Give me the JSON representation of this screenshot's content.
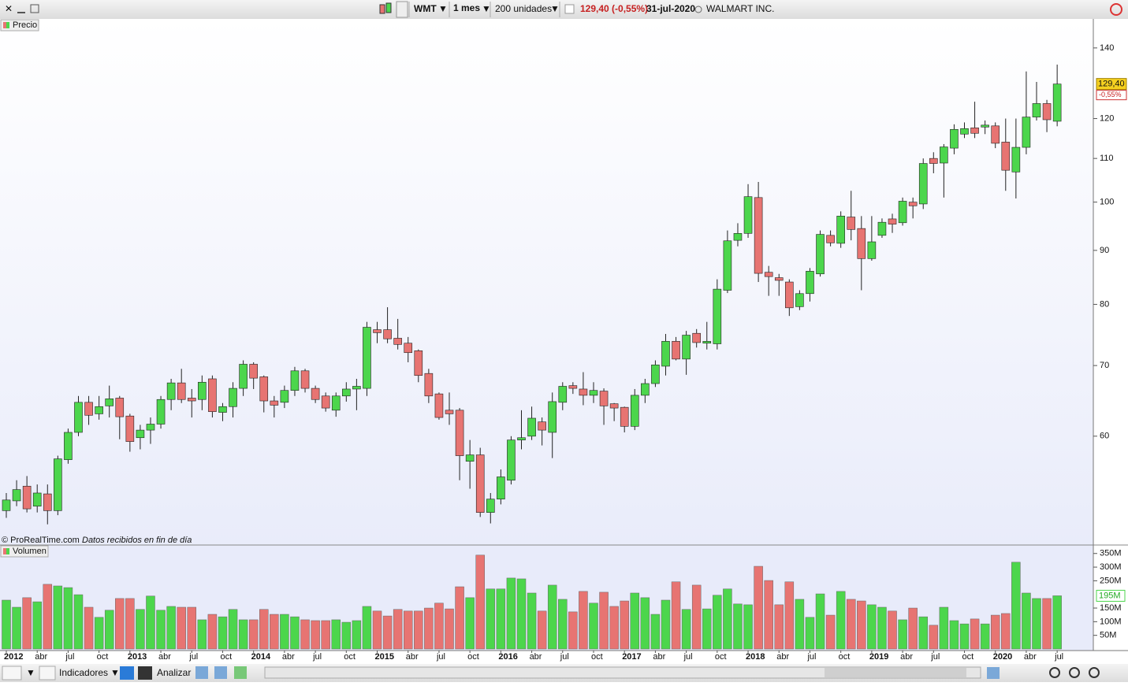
{
  "toolbar": {
    "symbol": "WMT",
    "period": "1 mes",
    "units": "200 unidades",
    "quote": "129,40 (-0,55%)",
    "date": "31-jul-2020",
    "name": "WALMART INC."
  },
  "bottom_toolbar": {
    "indicators": "Indicadores",
    "analyze": "Analizar"
  },
  "chart_data": [
    {
      "type": "candlestick",
      "title": "Precio",
      "log_scale": true,
      "categories": [
        "2012",
        null,
        null,
        "abr",
        null,
        null,
        "jul",
        null,
        null,
        "oct",
        null,
        null,
        "2013",
        null,
        null,
        "abr",
        null,
        null,
        "jul",
        null,
        null,
        "oct",
        null,
        null,
        "2014",
        null,
        null,
        "abr",
        null,
        null,
        "jul",
        null,
        null,
        "oct",
        null,
        null,
        "2015",
        null,
        null,
        "abr",
        null,
        null,
        "jul",
        null,
        null,
        "oct",
        null,
        null,
        "2016",
        null,
        null,
        "abr",
        null,
        null,
        "jul",
        null,
        null,
        "oct",
        null,
        null,
        "2017",
        null,
        null,
        "abr",
        null,
        null,
        "jul",
        null,
        null,
        "oct",
        null,
        null,
        "2018",
        null,
        null,
        "abr",
        null,
        null,
        "jul",
        null,
        null,
        "oct",
        null,
        null,
        "2019",
        null,
        null,
        "abr",
        null,
        null,
        "jul",
        null,
        null,
        "oct",
        null,
        null,
        "2020",
        null,
        null,
        "abr",
        null,
        null,
        "jul"
      ],
      "open": [
        51.0,
        52.1,
        53.8,
        51.5,
        52.9,
        51.0,
        57.0,
        60.5,
        64.6,
        63.0,
        64.1,
        65.2,
        62.7,
        59.8,
        60.8,
        61.6,
        65.0,
        67.4,
        65.2,
        65.0,
        68.0,
        63.2,
        64.0,
        66.6,
        70.2,
        68.3,
        64.8,
        64.6,
        66.3,
        69.2,
        66.6,
        65.5,
        63.5,
        65.5,
        66.5,
        66.6,
        75.7,
        75.7,
        74.3,
        73.5,
        72.3,
        68.8,
        65.8,
        63.5,
        63.5,
        56.8,
        57.6,
        50.8,
        52.3,
        54.5,
        59.5,
        60.0,
        61.9,
        60.5,
        64.6,
        67.0,
        66.5,
        65.6,
        66.2,
        64.4,
        63.9,
        61.3,
        65.6,
        67.3,
        69.9,
        73.8,
        71.0,
        75.1,
        73.5,
        73.4,
        82.5,
        92.0,
        93.4,
        101,
        85.8,
        84.8,
        84.0,
        79.6,
        81.9,
        85.5,
        93.0,
        91.4,
        96.8,
        94.4,
        88.4,
        93.0,
        96.4,
        95.6,
        100,
        99.6,
        110,
        108.9,
        112.5,
        116,
        117.6,
        117.8,
        118.1,
        114,
        106.8,
        112.7,
        120.4,
        124,
        119.3
      ],
      "high": [
        53,
        54.5,
        55,
        54,
        54,
        57.5,
        61,
        65.5,
        65.5,
        65.5,
        67,
        65.5,
        63,
        61.5,
        62.5,
        65.5,
        68,
        69.5,
        66.5,
        68.5,
        68.5,
        64.5,
        67.5,
        70.8,
        70.5,
        68.5,
        65.5,
        67,
        69.8,
        69.5,
        67,
        66,
        66,
        67.5,
        68,
        77,
        77,
        79.5,
        77.5,
        74.5,
        72.5,
        69.5,
        66,
        66,
        63.8,
        59.5,
        58.5,
        53,
        55.8,
        60,
        63.5,
        64,
        62.5,
        66,
        67.5,
        67.5,
        69,
        67.5,
        66.6,
        64.5,
        64,
        66.5,
        68,
        70.8,
        75,
        74.5,
        75.5,
        75.8,
        77,
        84.5,
        94,
        95.5,
        104,
        104.5,
        87,
        85.5,
        84.5,
        82.5,
        86.6,
        94,
        94,
        98,
        102.5,
        97,
        97,
        96.5,
        97.5,
        101,
        101,
        110,
        111.5,
        113.5,
        118.5,
        119,
        124.5,
        119.5,
        119,
        120,
        120,
        133,
        130,
        125,
        135
      ],
      "low": [
        50.2,
        51.5,
        50.8,
        50.8,
        49.5,
        50.5,
        56.5,
        60,
        61.5,
        62.2,
        62.5,
        59.6,
        58,
        58.3,
        59,
        61,
        63.5,
        64.5,
        62.5,
        63.5,
        62.5,
        62,
        62.5,
        65.5,
        66.5,
        63.2,
        62.5,
        63.8,
        65.5,
        66,
        64.5,
        63.3,
        62.6,
        64.7,
        63.5,
        65.5,
        73.5,
        73.5,
        72.5,
        70.5,
        67.5,
        64.5,
        62.2,
        61.5,
        54.5,
        53.5,
        50.3,
        49.6,
        51.7,
        54,
        58.3,
        59.5,
        58.8,
        57.2,
        63.5,
        65.8,
        64.2,
        64.5,
        61.5,
        62,
        60.5,
        60.8,
        64.5,
        66.8,
        68.5,
        70.8,
        68.6,
        72.8,
        72.5,
        72.5,
        82,
        90.8,
        92.5,
        84,
        81.5,
        81.5,
        78,
        79,
        80.5,
        85,
        90.8,
        90.5,
        92,
        82.5,
        88,
        92.5,
        93.5,
        95,
        96.5,
        98.5,
        106.5,
        101,
        111,
        115,
        115,
        116,
        112.5,
        102.5,
        100.8,
        111,
        119.5,
        116.5,
        118
      ],
      "close": [
        52.2,
        53.4,
        51.2,
        53.0,
        51.0,
        57.1,
        60.5,
        64.6,
        62.8,
        64.0,
        65.1,
        62.6,
        59.3,
        60.8,
        61.6,
        65.0,
        67.4,
        65.0,
        64.8,
        67.5,
        63.3,
        64.0,
        66.6,
        70.2,
        68.1,
        64.8,
        64.2,
        66.3,
        69.2,
        66.6,
        65.0,
        63.8,
        65.5,
        66.5,
        66.9,
        76.1,
        75.2,
        74.2,
        73.3,
        72.0,
        68.5,
        65.5,
        62.5,
        63.0,
        57.5,
        57.6,
        50.8,
        52.3,
        54.9,
        59.5,
        59.8,
        62.4,
        60.8,
        64.7,
        66.9,
        66.6,
        65.6,
        66.3,
        64.1,
        63.8,
        61.3,
        65.6,
        67.3,
        70.1,
        73.8,
        71.0,
        74.8,
        73.6,
        73.8,
        82.7,
        91.9,
        93.4,
        101.2,
        85.6,
        85.0,
        84.3,
        79.4,
        81.9,
        86.0,
        93.2,
        91.5,
        97.0,
        94.2,
        88.4,
        91.7,
        95.7,
        95.3,
        100.2,
        99.2,
        108.8,
        108.8,
        112.8,
        117.2,
        117.4,
        116.2,
        118.3,
        113.7,
        107.2,
        112.7,
        120.4,
        124,
        119.7,
        129.4
      ],
      "up_color": "#4cd64c",
      "down_color": "#e77472",
      "ylim": [
        48.3,
        148.9
      ],
      "yticks": [
        60,
        70,
        80,
        90,
        100,
        110,
        120,
        140
      ],
      "last_label": "129,40",
      "change_label": "-0,55%",
      "source": "© ProRealTime.com",
      "note": "Datos recibidos en fin de día"
    },
    {
      "type": "bar",
      "title": "Volumen",
      "values": [
        179000000,
        153000000,
        188000000,
        173000000,
        237000000,
        231000000,
        225000000,
        199000000,
        153000000,
        116000000,
        142000000,
        185000000,
        185000000,
        145000000,
        194000000,
        142000000,
        156000000,
        153000000,
        153000000,
        107000000,
        127000000,
        118000000,
        145000000,
        107000000,
        107000000,
        145000000,
        127000000,
        127000000,
        118000000,
        107000000,
        104000000,
        104000000,
        107000000,
        98000000,
        104000000,
        156000000,
        139000000,
        121000000,
        145000000,
        139000000,
        139000000,
        150000000,
        168000000,
        147000000,
        228000000,
        188000000,
        344000000,
        220000000,
        220000000,
        260000000,
        257000000,
        205000000,
        139000000,
        234000000,
        182000000,
        136000000,
        211000000,
        168000000,
        208000000,
        156000000,
        176000000,
        205000000,
        188000000,
        127000000,
        179000000,
        246000000,
        145000000,
        234000000,
        147000000,
        197000000,
        220000000,
        165000000,
        162000000,
        303000000,
        251000000,
        162000000,
        246000000,
        182000000,
        116000000,
        202000000,
        124000000,
        211000000,
        182000000,
        176000000,
        162000000,
        153000000,
        139000000,
        107000000,
        150000000,
        118000000,
        87000000,
        153000000,
        104000000,
        92000000,
        110000000,
        92000000,
        124000000,
        130000000,
        318000000,
        205000000,
        185000000,
        185000000,
        195000000
      ],
      "ylim": [
        0,
        381000000
      ],
      "yticks": [
        {
          "value": 50000000,
          "label": "50M"
        },
        {
          "value": 100000000,
          "label": "100M"
        },
        {
          "value": 150000000,
          "label": "150M"
        },
        {
          "value": 250000000,
          "label": "250M"
        },
        {
          "value": 300000000,
          "label": "300M"
        },
        {
          "value": 350000000,
          "label": "350M"
        }
      ],
      "last_label": "195M"
    }
  ]
}
